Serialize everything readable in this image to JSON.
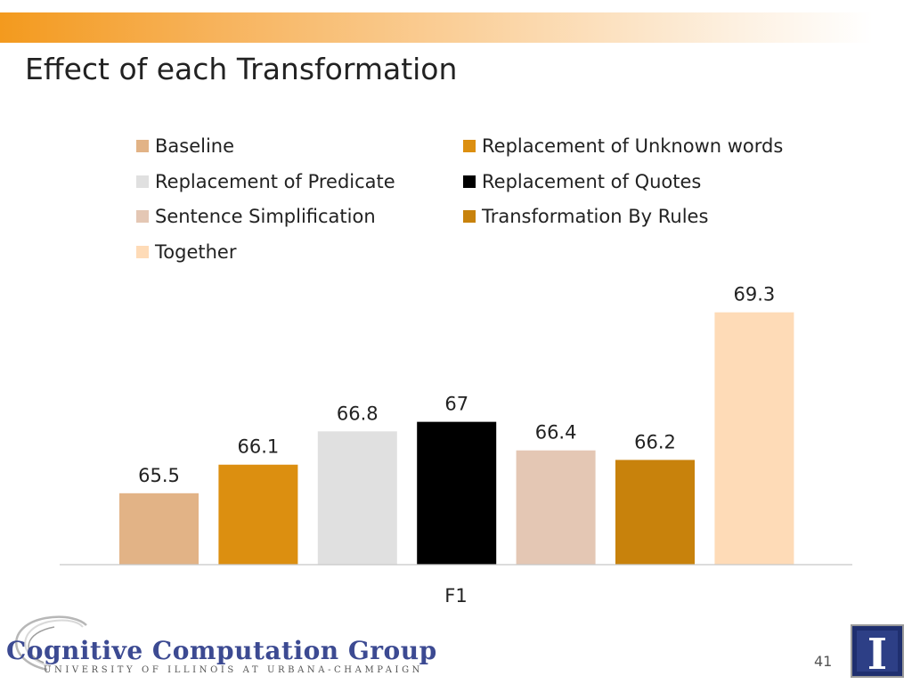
{
  "slide": {
    "title": "Effect of each Transformation",
    "page_number": "41",
    "footer": {
      "logo_text": "Cognitive Computation Group",
      "logo_subtext": "UNIVERSITY OF ILLINOIS AT URBANA-CHAMPAIGN",
      "uiuc_mark": "I"
    }
  },
  "chart_data": {
    "type": "bar",
    "title": "",
    "xlabel": "F1",
    "ylabel": "",
    "categories": [
      "F1"
    ],
    "ylim": [
      64,
      69.5
    ],
    "grid": false,
    "legend_placement": "top",
    "series": [
      {
        "name": "Baseline",
        "values": [
          65.5
        ],
        "label": "65.5",
        "color": "#e2b386"
      },
      {
        "name": "Replacement of Unknown words",
        "values": [
          66.1
        ],
        "label": "66.1",
        "color": "#dc8f10"
      },
      {
        "name": "Replacement of Predicate",
        "values": [
          66.8
        ],
        "label": "66.8",
        "color": "#e0e0e0"
      },
      {
        "name": "Replacement of Quotes",
        "values": [
          67
        ],
        "label": "67",
        "color": "#000000"
      },
      {
        "name": "Sentence Simplification",
        "values": [
          66.4
        ],
        "label": "66.4",
        "color": "#e4c7b4"
      },
      {
        "name": "Transformation By Rules",
        "values": [
          66.2
        ],
        "label": "66.2",
        "color": "#c8820c"
      },
      {
        "name": "Together",
        "values": [
          69.3
        ],
        "label": "69.3",
        "color": "#fedbb7"
      }
    ]
  }
}
